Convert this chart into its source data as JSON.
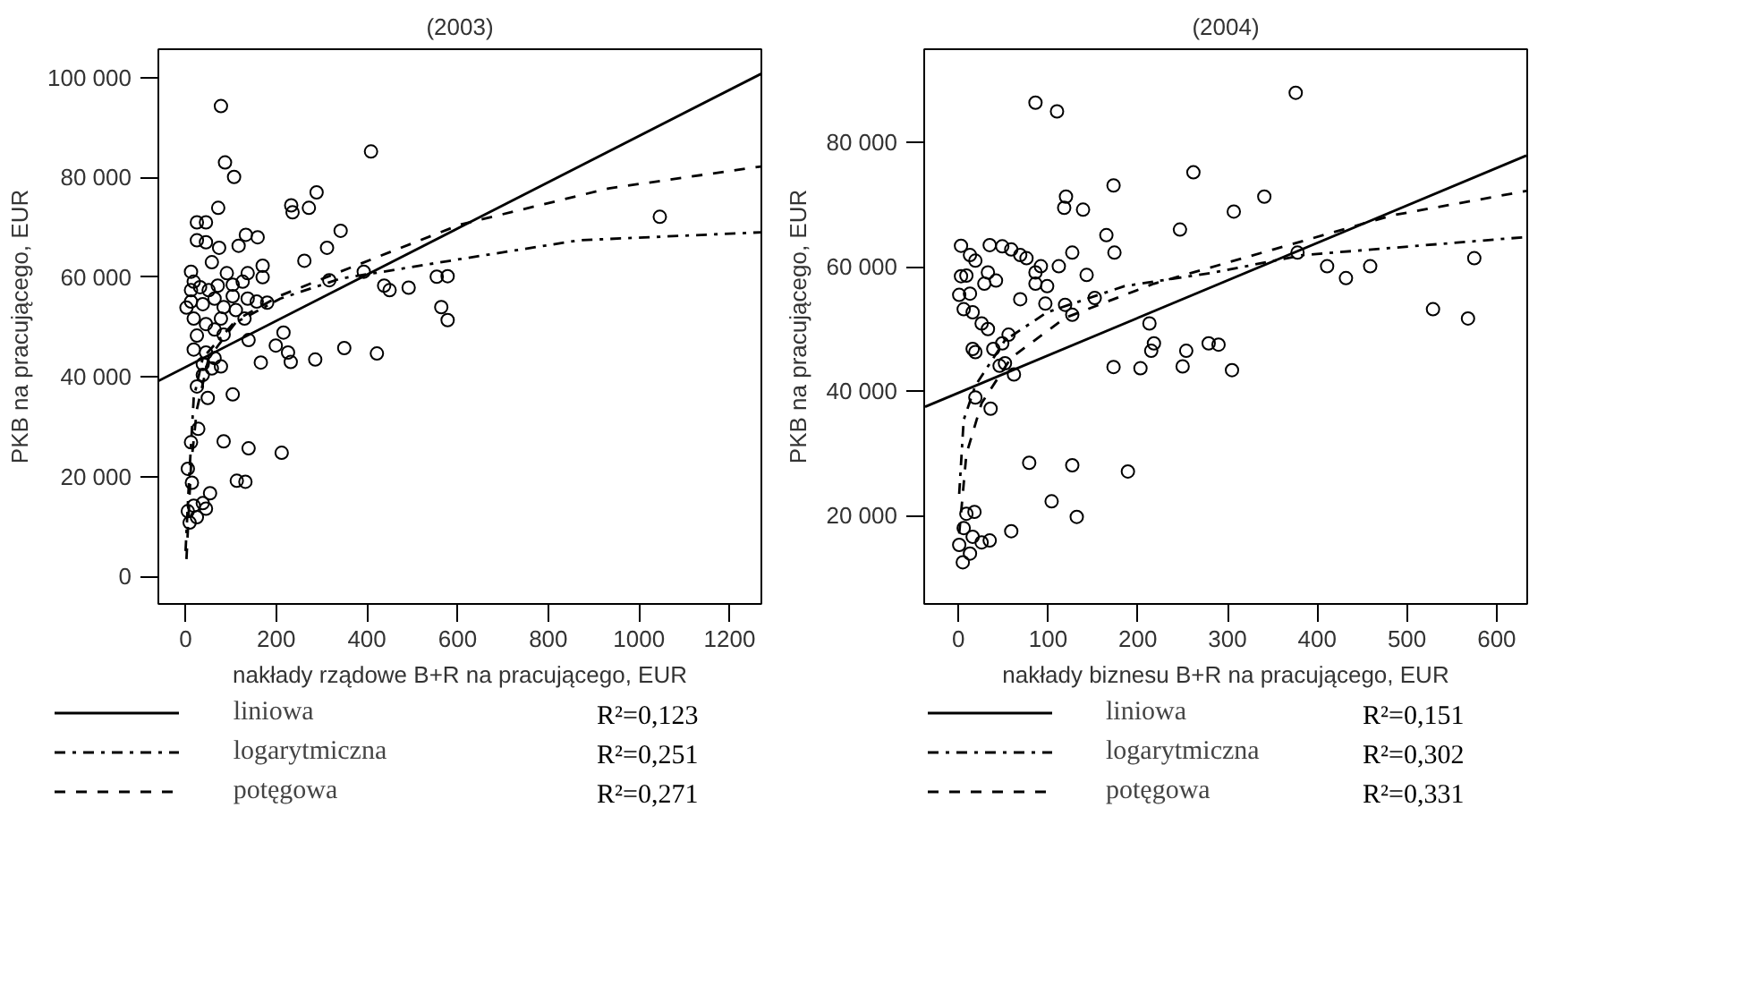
{
  "chart_data": [
    {
      "type": "scatter",
      "title": "(2003)",
      "xlabel": "nakłady rządowe B+R na pracującego, EUR",
      "ylabel": "PKB na pracującego, EUR",
      "xlim": [
        -60,
        1270
      ],
      "ylim": [
        -5500,
        105700
      ],
      "xticks": [
        0,
        200,
        400,
        600,
        800,
        1000,
        1200
      ],
      "yticks": [
        0,
        {
          "value": 20000,
          "label": "20 000"
        },
        {
          "value": 40000,
          "label": "40 000"
        },
        {
          "value": 60000,
          "label": "60 000"
        },
        {
          "value": 80000,
          "label": "80 000"
        },
        {
          "value": 100000,
          "label": "100 000"
        }
      ],
      "grid": false,
      "legend": "bottom",
      "annotations": [
        "R²=0,123",
        "R²=0,251",
        "R²=0,271"
      ],
      "series": [
        {
          "type": "scatter",
          "marker": "circle",
          "color": "#000000",
          "x": [
            78,
            87,
            107,
            72,
            25,
            45,
            25,
            45,
            74,
            117,
            133,
            159,
            58,
            170,
            170,
            262,
            233,
            236,
            272,
            289,
            312,
            342,
            409,
            393,
            317,
            438,
            450,
            492,
            554,
            578,
            564,
            578,
            1046,
            180,
            139,
            216,
            199,
            226,
            232,
            286,
            350,
            422,
            166,
            104,
            49,
            28,
            12,
            84,
            139,
            212,
            113,
            132,
            54,
            5,
            18,
            38,
            9,
            25,
            45,
            5,
            14,
            12,
            18,
            32,
            51,
            71,
            91,
            104,
            126,
            137,
            12,
            38,
            64,
            84,
            111,
            130,
            18,
            45,
            64,
            84,
            25,
            18,
            45,
            64,
            78,
            38,
            38,
            58,
            25,
            78,
            104,
            12,
            2,
            157,
            137
          ],
          "values": [
            94300,
            83000,
            80100,
            73900,
            71000,
            71000,
            67400,
            67000,
            65900,
            66300,
            68500,
            68000,
            63000,
            62300,
            60000,
            63300,
            74400,
            73000,
            73900,
            77000,
            65900,
            69300,
            85200,
            61100,
            59400,
            58300,
            57400,
            57900,
            60100,
            60200,
            54000,
            51400,
            72100,
            54900,
            47400,
            48900,
            46300,
            44900,
            43000,
            43500,
            45800,
            44700,
            42900,
            36500,
            35800,
            29600,
            26900,
            27100,
            25700,
            24800,
            19200,
            19000,
            16700,
            13100,
            14200,
            14700,
            10800,
            11900,
            13600,
            21600,
            18800,
            61100,
            59100,
            58000,
            57400,
            58300,
            60800,
            58500,
            59100,
            60800,
            55100,
            54600,
            55700,
            54000,
            53400,
            51700,
            51700,
            50600,
            49500,
            48500,
            48300,
            45500,
            44900,
            43800,
            42100,
            42600,
            40400,
            41700,
            38100,
            51700,
            56200,
            57400,
            53900,
            55100,
            55700
          ]
        },
        {
          "type": "line",
          "name": "liniowa",
          "line_style": "solid",
          "color": "#000000",
          "x": [
            -60,
            1270
          ],
          "values": [
            39200,
            100800
          ]
        },
        {
          "type": "line",
          "name": "logarytmiczna",
          "line_style": "dashdot",
          "color": "#000000",
          "x": [
            0,
            8,
            18,
            38,
            104,
            209,
            341,
            604,
            867,
            1270
          ],
          "values": [
            5100,
            20000,
            35800,
            43800,
            50600,
            55700,
            59700,
            63600,
            67400,
            69000
          ]
        },
        {
          "type": "line",
          "name": "potęgowa",
          "line_style": "dashed",
          "color": "#000000",
          "x": [
            2,
            12,
            25,
            51,
            117,
            209,
            341,
            604,
            933,
            1270
          ],
          "values": [
            3500,
            22200,
            33500,
            43800,
            51700,
            56300,
            61100,
            70500,
            77800,
            82200
          ]
        }
      ]
    },
    {
      "type": "scatter",
      "title": "(2004)",
      "xlabel": "nakłady biznesu B+R na pracującego, EUR",
      "ylabel": "PKB na pracującego, EUR",
      "xlim": [
        -38,
        634
      ],
      "ylim": [
        5800,
        95000
      ],
      "xticks": [
        0,
        100,
        200,
        300,
        400,
        500,
        600
      ],
      "yticks": [
        {
          "value": 20000,
          "label": "20 000"
        },
        {
          "value": 40000,
          "label": "40 000"
        },
        {
          "value": 60000,
          "label": "60 000"
        },
        {
          "value": 80000,
          "label": "80 000"
        }
      ],
      "grid": false,
      "legend": "bottom",
      "annotations": [
        "R²=0,151",
        "R²=0,302",
        "R²=0,331"
      ],
      "series": [
        {
          "type": "scatter",
          "marker": "circle",
          "color": "#000000",
          "x": [
            86,
            110,
            376,
            262,
            173,
            120,
            118,
            139,
            307,
            341,
            247,
            165,
            174,
            127,
            378,
            411,
            432,
            459,
            575,
            529,
            568,
            213,
            218,
            215,
            254,
            250,
            279,
            290,
            305,
            173,
            203,
            79,
            127,
            189,
            104,
            132,
            59,
            9,
            18,
            6,
            1,
            16,
            26,
            13,
            35,
            5,
            3,
            13,
            19,
            9,
            3,
            1,
            13,
            6,
            16,
            26,
            33,
            35,
            49,
            59,
            69,
            76,
            92,
            86,
            99,
            97,
            119,
            127,
            143,
            152,
            69,
            56,
            49,
            39,
            46,
            62,
            19,
            19,
            36,
            29,
            33,
            42,
            16,
            52,
            86,
            112
          ],
          "values": [
            86400,
            85000,
            88000,
            75200,
            73100,
            71300,
            69500,
            69200,
            68900,
            71300,
            66000,
            65100,
            62300,
            62300,
            62300,
            60100,
            58200,
            60100,
            61400,
            53200,
            51700,
            50900,
            47700,
            46500,
            46500,
            44000,
            47700,
            47500,
            43400,
            43900,
            43700,
            28500,
            28100,
            27100,
            22300,
            19800,
            17500,
            20300,
            20600,
            18000,
            15300,
            16600,
            15700,
            13900,
            16000,
            12500,
            63400,
            61900,
            61000,
            58600,
            58500,
            55500,
            55700,
            53200,
            52700,
            50900,
            50000,
            63500,
            63300,
            62800,
            61900,
            61400,
            60100,
            57300,
            56900,
            54100,
            53900,
            52300,
            58700,
            55000,
            54800,
            49100,
            47700,
            46800,
            44100,
            42700,
            46300,
            39000,
            37200,
            57300,
            59100,
            57800,
            46800,
            44500,
            59100,
            60100
          ]
        },
        {
          "type": "line",
          "name": "liniowa",
          "line_style": "solid",
          "color": "#000000",
          "x": [
            -37,
            633
          ],
          "values": [
            37500,
            77900
          ]
        },
        {
          "type": "line",
          "name": "logarytmiczna",
          "line_style": "dashdot",
          "color": "#000000",
          "x": [
            1,
            6,
            19,
            52,
            99,
            185,
            285,
            384,
            633
          ],
          "values": [
            23500,
            35400,
            40900,
            48200,
            52700,
            56900,
            59100,
            61900,
            64800
          ]
        },
        {
          "type": "line",
          "name": "potęgowa",
          "line_style": "dashed",
          "color": "#000000",
          "x": [
            1,
            9,
            26,
            59,
            119,
            218,
            351,
            484,
            633
          ],
          "values": [
            17100,
            29900,
            38100,
            45400,
            51800,
            57300,
            62800,
            68300,
            72200
          ]
        }
      ]
    }
  ]
}
